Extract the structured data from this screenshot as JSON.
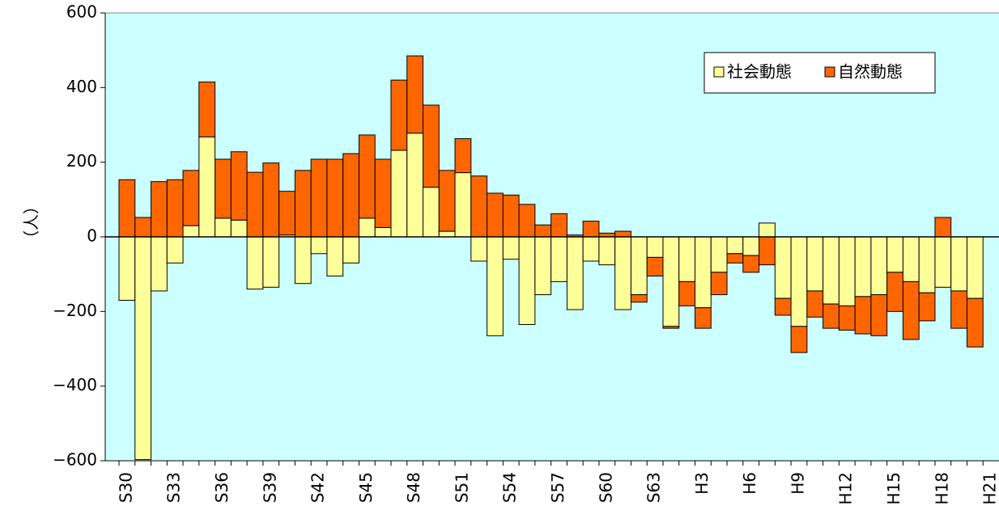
{
  "chart_data": {
    "type": "bar",
    "stacked": true,
    "y_label": "（人）",
    "categories": [
      "S30",
      null,
      null,
      "S33",
      null,
      null,
      "S36",
      null,
      null,
      "S39",
      null,
      null,
      "S42",
      null,
      null,
      "S45",
      null,
      null,
      "S48",
      null,
      null,
      "S51",
      null,
      null,
      "S54",
      null,
      null,
      "S57",
      null,
      null,
      "S60",
      null,
      null,
      "S63",
      null,
      null,
      "H3",
      null,
      null,
      "H6",
      null,
      null,
      "H9",
      null,
      null,
      "H12",
      null,
      null,
      "H15",
      null,
      null,
      "H18",
      null,
      null,
      "H21"
    ],
    "series": [
      {
        "name": "社会動態",
        "color": "#ffff99",
        "values": [
          -170,
          -597,
          -145,
          -70,
          30,
          268,
          50,
          45,
          -140,
          -135,
          5,
          -125,
          -45,
          -105,
          -70,
          50,
          25,
          232,
          278,
          133,
          15,
          172,
          -65,
          -265,
          -60,
          -235,
          -155,
          -120,
          -195,
          -65,
          -75,
          -195,
          -155,
          -55,
          -240,
          -120,
          -190,
          -95,
          -45,
          -50,
          37,
          -165,
          -240,
          -145,
          -180,
          -185,
          -160,
          -155,
          -95,
          -120,
          -150,
          -135,
          -145,
          -165,
          null
        ]
      },
      {
        "name": "自然動態",
        "color": "#ff6600",
        "values": [
          153,
          52,
          148,
          153,
          148,
          147,
          158,
          183,
          173,
          198,
          117,
          178,
          208,
          208,
          223,
          223,
          183,
          188,
          207,
          220,
          163,
          91,
          163,
          117,
          112,
          87,
          32,
          62,
          5,
          42,
          10,
          15,
          -20,
          -50,
          -5,
          -65,
          -55,
          -60,
          -25,
          -45,
          -75,
          -45,
          -70,
          -70,
          -65,
          -65,
          -100,
          -110,
          -105,
          -155,
          -75,
          52,
          -100,
          -130,
          null
        ]
      }
    ],
    "ylim": [
      -600,
      600
    ],
    "yticks": [
      {
        "value": -600,
        "label": "−600"
      },
      {
        "value": -400,
        "label": "−400"
      },
      {
        "value": -200,
        "label": "−200"
      },
      0,
      200,
      400,
      600
    ],
    "legend": "top-right"
  }
}
